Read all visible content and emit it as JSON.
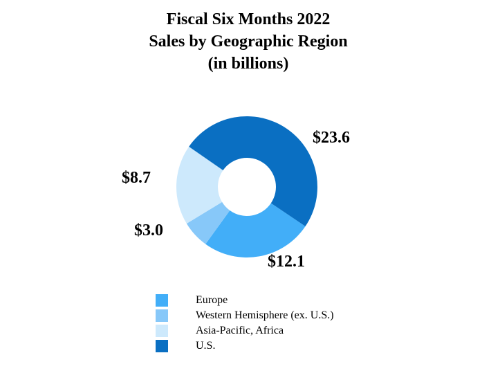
{
  "chart_data": {
    "type": "pie",
    "title": [
      "Fiscal Six Months 2022",
      "Sales by Geographic Region",
      "(in billions)"
    ],
    "categories": [
      "Europe",
      "Western Hemisphere (ex. U.S.)",
      "Asia-Pacific, Africa",
      "U.S."
    ],
    "values": [
      12.1,
      3.0,
      8.7,
      23.6
    ],
    "value_labels": [
      "$12.1",
      "$3.0",
      "$8.7",
      "$23.6"
    ],
    "colors": [
      "#42aef8",
      "#87c8f9",
      "#cde9fc",
      "#0a6fc2"
    ],
    "style": "donut",
    "legend_position": "bottom"
  }
}
